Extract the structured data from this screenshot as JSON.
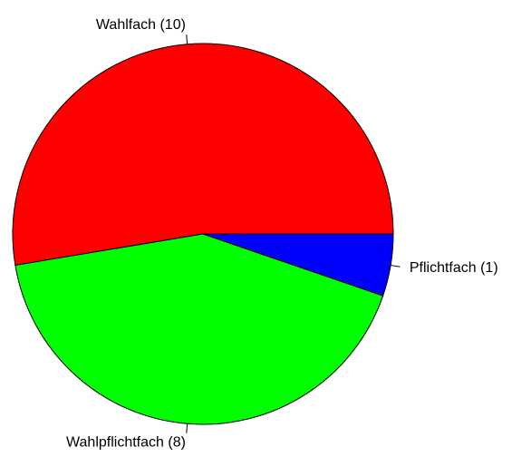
{
  "chart_data": {
    "type": "pie",
    "categories": [
      "Wahlfach (10)",
      "Wahlpflichtfach (8)",
      "Pflichtfach (1)"
    ],
    "values": [
      10,
      8,
      1
    ],
    "colors": [
      "#ff0000",
      "#00ff00",
      "#0000ff"
    ],
    "start_angle": 0,
    "direction": "counterclockwise"
  }
}
